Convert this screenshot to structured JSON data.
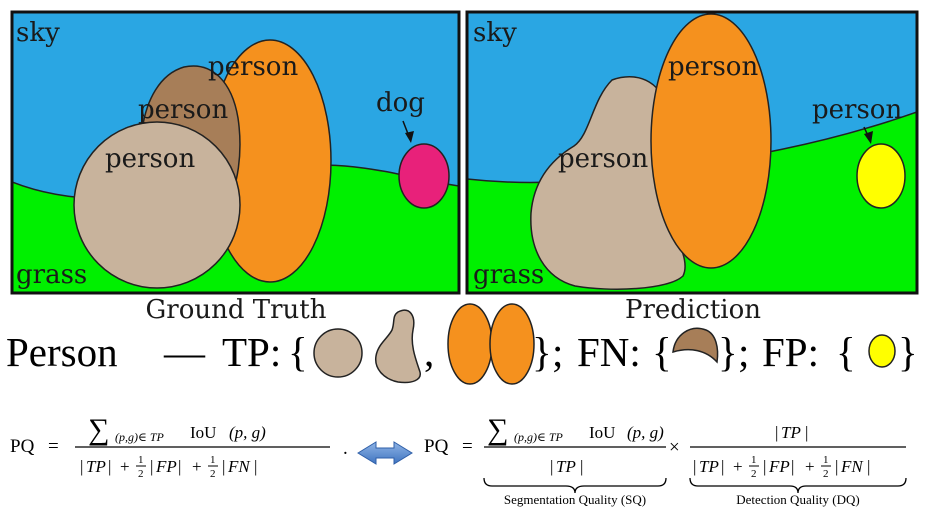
{
  "panels": {
    "ground_truth": {
      "caption": "Ground Truth",
      "labels": {
        "sky": "sky",
        "grass": "grass",
        "person_back": "person",
        "person_mid": "person",
        "person_front": "person",
        "dog": "dog"
      }
    },
    "prediction": {
      "caption": "Prediction",
      "labels": {
        "sky": "sky",
        "grass": "grass",
        "person_left": "person",
        "person_right": "person",
        "person_fp": "person"
      }
    }
  },
  "legend": {
    "class_name": "Person",
    "dash": "—",
    "tp": "TP:",
    "fn": "FN:",
    "fp": "FP:",
    "open_brace": "{",
    "close_brace": "}",
    "comma": ",",
    "semicolon": ";"
  },
  "formula": {
    "lhs": "PQ",
    "equals": "=",
    "sum_symbol": "∑",
    "sum_index": "(p,g)∈ TP",
    "iou": "IoU",
    "iou_args": "(p, g)",
    "tp": "TP",
    "fp": "FP",
    "fn": "FN",
    "plus": "+",
    "half_num": "1",
    "half_den": "2",
    "period": ".",
    "times": "×",
    "sq_label": "Segmentation Quality (SQ)",
    "dq_label": "Detection Quality (DQ)"
  },
  "colors": {
    "sky": "#2aa6e3",
    "grass": "#00f000",
    "tan": "#c8b39c",
    "orange": "#f5911e",
    "brown": "#a77e58",
    "dog": "#e8217a",
    "fp_yellow": "#ffff00",
    "arrow": "#5b8ed1"
  }
}
